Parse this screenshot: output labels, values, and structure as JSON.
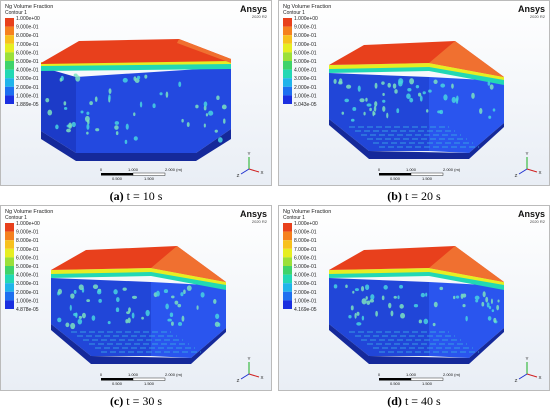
{
  "panels": [
    {
      "legend": {
        "title": "Ng Volume Fraction",
        "subtitle": "Contour 1",
        "levels": [
          "1.000e+00",
          "9.000e-01",
          "8.000e-01",
          "7.000e-01",
          "6.000e-01",
          "5.000e-01",
          "4.000e-01",
          "3.000e-01",
          "2.000e-01",
          "1.000e-01",
          "1.889e-05"
        ]
      },
      "brand": "Ansys",
      "version": "2020 R2",
      "scale": {
        "top": [
          "0",
          "1.000",
          "2.000 (m)"
        ],
        "bottom": [
          "0.500",
          "1.500"
        ]
      },
      "axes": [
        "Y",
        "X",
        "Z"
      ],
      "caption": {
        "label": "(a)",
        "text": "t = 10 s"
      }
    },
    {
      "legend": {
        "title": "Ng Volume Fraction",
        "subtitle": "Contour 1",
        "levels": [
          "1.000e+00",
          "9.000e-01",
          "8.000e-01",
          "7.000e-01",
          "6.000e-01",
          "5.000e-01",
          "4.000e-01",
          "3.000e-01",
          "2.000e-01",
          "1.000e-01",
          "5.043e-05"
        ]
      },
      "brand": "Ansys",
      "version": "2020 R2",
      "scale": {
        "top": [
          "0",
          "1.000",
          "2.000 (m)"
        ],
        "bottom": [
          "0.500",
          "1.500"
        ]
      },
      "axes": [
        "Y",
        "X",
        "Z"
      ],
      "caption": {
        "label": "(b)",
        "text": "t = 20 s"
      }
    },
    {
      "legend": {
        "title": "Ng Volume Fraction",
        "subtitle": "Contour 1",
        "levels": [
          "1.000e+00",
          "9.000e-01",
          "8.000e-01",
          "7.000e-01",
          "6.000e-01",
          "5.000e-01",
          "4.000e-01",
          "3.000e-01",
          "2.000e-01",
          "1.000e-01",
          "4.878e-05"
        ]
      },
      "brand": "Ansys",
      "version": "2020 R2",
      "scale": {
        "top": [
          "0",
          "1.000",
          "2.000 (m)"
        ],
        "bottom": [
          "0.500",
          "1.500"
        ]
      },
      "axes": [
        "Y",
        "X",
        "Z"
      ],
      "caption": {
        "label": "(c)",
        "text": "t = 30 s"
      }
    },
    {
      "legend": {
        "title": "Ng Volume Fraction",
        "subtitle": "Contour 1",
        "levels": [
          "1.000e+00",
          "9.000e-01",
          "8.000e-01",
          "7.000e-01",
          "6.000e-01",
          "5.000e-01",
          "4.000e-01",
          "3.000e-01",
          "2.000e-01",
          "1.000e-01",
          "4.169e-05"
        ]
      },
      "brand": "Ansys",
      "version": "2020 R2",
      "scale": {
        "top": [
          "0",
          "1.000",
          "2.000 (m)"
        ],
        "bottom": [
          "0.500",
          "1.500"
        ]
      },
      "axes": [
        "Y",
        "X",
        "Z"
      ],
      "caption": {
        "label": "(d)",
        "text": "t = 40 s"
      }
    }
  ]
}
